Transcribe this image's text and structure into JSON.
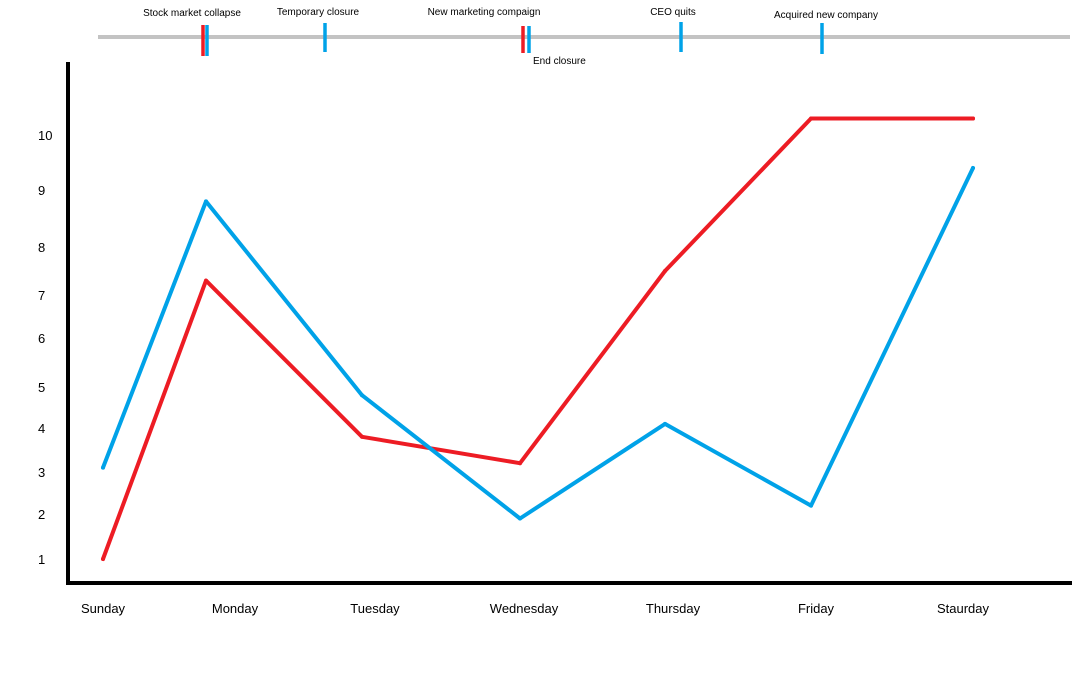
{
  "chart_data": {
    "type": "line",
    "title": "",
    "xlabel": "",
    "ylabel": "",
    "categories": [
      "Sunday",
      "Monday",
      "Tuesday",
      "Wednesday",
      "Thursday",
      "Friday",
      "Staurday"
    ],
    "yticks": [
      "1",
      "2",
      "3",
      "4",
      "5",
      "6",
      "7",
      "8",
      "9",
      "10"
    ],
    "series": [
      {
        "color": "#ed1c24",
        "points": [
          {
            "x": "Sunday",
            "y": 1.0
          },
          {
            "x": "Monday",
            "y": 7.3
          },
          {
            "x": "Tuesday",
            "y": 3.8
          },
          {
            "x": "Wednesday",
            "y": 3.2
          },
          {
            "x": "Thursday",
            "y": 7.5
          },
          {
            "x": "Friday",
            "y": 10.3
          },
          {
            "x": "Staurday",
            "y": 10.3
          }
        ]
      },
      {
        "color": "#00a2e8",
        "points": [
          {
            "x": "Sunday",
            "y": 3.1
          },
          {
            "x": "Monday",
            "y": 8.8
          },
          {
            "x": "Tuesday",
            "y": 4.8
          },
          {
            "x": "Wednesday",
            "y": 1.9
          },
          {
            "x": "Thursday",
            "y": 4.1
          },
          {
            "x": "Friday",
            "y": 2.2
          },
          {
            "x": "Staurday",
            "y": 9.4
          }
        ]
      }
    ],
    "grid": false,
    "legend": "none",
    "timeline": {
      "line_color": "#c3c3c3",
      "events": [
        {
          "label": "Stock market collapse",
          "day": "Monday",
          "colors": [
            "#ed1c24",
            "#00a2e8"
          ],
          "label_position": "above"
        },
        {
          "label": "Temporary closure",
          "day": "Monday-Tuesday",
          "colors": [
            "#00a2e8"
          ],
          "label_position": "above"
        },
        {
          "label": "New marketing compaign",
          "day": "Wednesday",
          "colors": [
            "#ed1c24"
          ],
          "label_position": "above"
        },
        {
          "label": "End closure",
          "day": "Wednesday",
          "colors": [
            "#00a2e8"
          ],
          "label_position": "below"
        },
        {
          "label": "CEO quits",
          "day": "Thursday",
          "colors": [
            "#00a2e8"
          ],
          "label_position": "above"
        },
        {
          "label": "Acquired new company",
          "day": "Friday",
          "colors": [
            "#00a2e8"
          ],
          "label_position": "above"
        }
      ]
    }
  }
}
